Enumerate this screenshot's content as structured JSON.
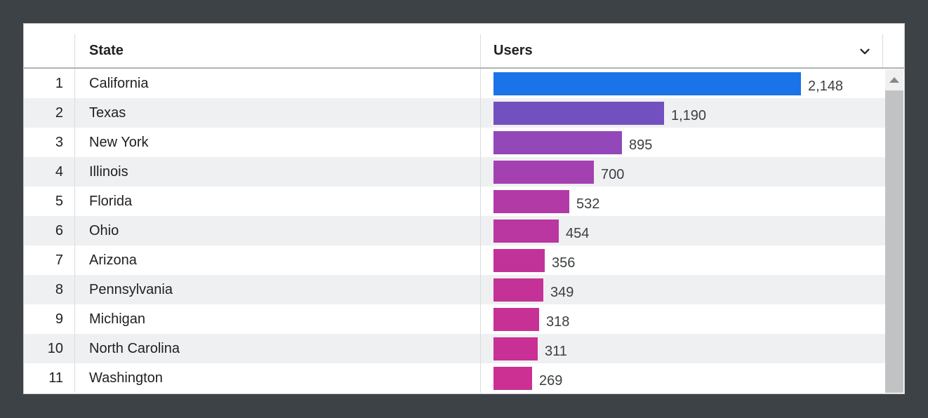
{
  "colors": {
    "frame_background": "#3d4246",
    "card_background": "#ffffff",
    "row_stripe": "#eff0f1",
    "divider": "#d9dcde",
    "header_border": "#b0b3b5",
    "text_primary": "#202124",
    "value_text": "#3c4043",
    "scrollbar_track": "#f0f0f0",
    "scrollbar_thumb": "#c1c2c4",
    "max_bar_color": "#1a73e8",
    "min_bar_color": "#cc3093"
  },
  "table": {
    "columns": [
      {
        "label": "State"
      },
      {
        "label": "Users",
        "sort_icon": "chevron-down-icon"
      }
    ],
    "max_users": 2148,
    "rows": [
      {
        "rank": "1",
        "state": "California",
        "users": 2148,
        "users_label": "2,148",
        "bar_color": "#1a73e8"
      },
      {
        "rank": "2",
        "state": "Texas",
        "users": 1190,
        "users_label": "1,190",
        "bar_color": "#7350c0"
      },
      {
        "rank": "3",
        "state": "New York",
        "users": 895,
        "users_label": "895",
        "bar_color": "#9347b8"
      },
      {
        "rank": "4",
        "state": "Illinois",
        "users": 700,
        "users_label": "700",
        "bar_color": "#a441b1"
      },
      {
        "rank": "5",
        "state": "Florida",
        "users": 532,
        "users_label": "532",
        "bar_color": "#b23aa7"
      },
      {
        "rank": "6",
        "state": "Ohio",
        "users": 454,
        "users_label": "454",
        "bar_color": "#ba36a1"
      },
      {
        "rank": "7",
        "state": "Arizona",
        "users": 356,
        "users_label": "356",
        "bar_color": "#c2339a"
      },
      {
        "rank": "8",
        "state": "Pennsylvania",
        "users": 349,
        "users_label": "349",
        "bar_color": "#c43298"
      },
      {
        "rank": "9",
        "state": "Michigan",
        "users": 318,
        "users_label": "318",
        "bar_color": "#c73196"
      },
      {
        "rank": "10",
        "state": "North Carolina",
        "users": 311,
        "users_label": "311",
        "bar_color": "#c93095"
      },
      {
        "rank": "11",
        "state": "Washington",
        "users": 269,
        "users_label": "269",
        "bar_color": "#cc3093"
      }
    ]
  },
  "scrollbar": {
    "up_icon": "triangle-up-icon"
  },
  "chart_data": {
    "type": "bar",
    "orientation": "horizontal",
    "title": "",
    "xlabel": "Users",
    "ylabel": "State",
    "xlim": [
      0,
      2148
    ],
    "grid": false,
    "legend": false,
    "categories": [
      "California",
      "Texas",
      "New York",
      "Illinois",
      "Florida",
      "Ohio",
      "Arizona",
      "Pennsylvania",
      "Michigan",
      "North Carolina",
      "Washington"
    ],
    "values": [
      2148,
      1190,
      895,
      700,
      532,
      454,
      356,
      349,
      318,
      311,
      269
    ],
    "value_labels": [
      "2,148",
      "1,190",
      "895",
      "700",
      "532",
      "454",
      "356",
      "349",
      "318",
      "311",
      "269"
    ],
    "bar_colors": [
      "#1a73e8",
      "#7350c0",
      "#9347b8",
      "#a441b1",
      "#b23aa7",
      "#ba36a1",
      "#c2339a",
      "#c43298",
      "#c73196",
      "#c93095",
      "#cc3093"
    ]
  }
}
